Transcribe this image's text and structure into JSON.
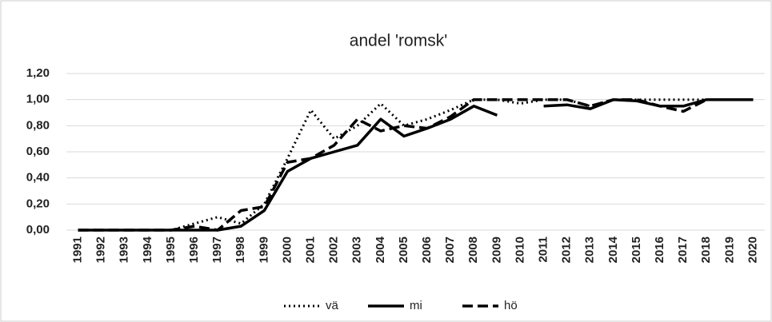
{
  "chart_data": {
    "type": "line",
    "title": "andel 'romsk'",
    "categories": [
      "1991",
      "1992",
      "1993",
      "1994",
      "1995",
      "1996",
      "1997",
      "1998",
      "1999",
      "2000",
      "2001",
      "2002",
      "2003",
      "2004",
      "2005",
      "2006",
      "2007",
      "2008",
      "2009",
      "2010",
      "2011",
      "2012",
      "2013",
      "2014",
      "2015",
      "2016",
      "2017",
      "2018",
      "2019",
      "2020"
    ],
    "series": [
      {
        "name": "vä",
        "color": "#000000",
        "line_style": "dotted",
        "values": [
          0,
          0,
          0,
          0,
          0,
          0.05,
          0.1,
          0.05,
          0.2,
          0.55,
          0.92,
          0.7,
          0.8,
          0.97,
          0.8,
          0.85,
          0.92,
          1,
          1,
          0.97,
          1,
          1,
          0.95,
          1,
          1,
          1,
          1,
          1,
          1,
          1
        ]
      },
      {
        "name": "mi",
        "color": "#000000",
        "line_style": "solid",
        "values": [
          0,
          0,
          0,
          0,
          0,
          0,
          0,
          0.03,
          0.15,
          0.45,
          0.55,
          0.6,
          0.65,
          0.85,
          0.72,
          0.78,
          0.85,
          0.95,
          0.88,
          null,
          0.95,
          0.96,
          0.93,
          1,
          0.99,
          0.95,
          0.95,
          1,
          1,
          1
        ]
      },
      {
        "name": "hö",
        "color": "#000000",
        "line_style": "dashed",
        "values": [
          0,
          0,
          0,
          0,
          0,
          0.03,
          0,
          0.15,
          0.18,
          0.52,
          0.55,
          0.65,
          0.85,
          0.76,
          0.8,
          0.78,
          0.87,
          1,
          1,
          1,
          1,
          1,
          0.95,
          1,
          1,
          0.95,
          0.91,
          1,
          1,
          1
        ]
      }
    ],
    "ylim": [
      0,
      1.2
    ],
    "yticks": [
      {
        "value": 0,
        "label": "0,00"
      },
      {
        "value": 0.2,
        "label": "0,20"
      },
      {
        "value": 0.4,
        "label": "0,40"
      },
      {
        "value": 0.6,
        "label": "0,60"
      },
      {
        "value": 0.8,
        "label": "0,80"
      },
      {
        "value": 1,
        "label": "1,00"
      },
      {
        "value": 1.2,
        "label": "1,20"
      }
    ],
    "grid": true,
    "legend": "bottom"
  }
}
